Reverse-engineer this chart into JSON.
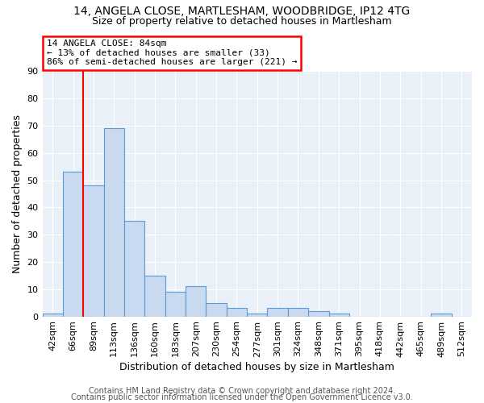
{
  "title1": "14, ANGELA CLOSE, MARTLESHAM, WOODBRIDGE, IP12 4TG",
  "title2": "Size of property relative to detached houses in Martlesham",
  "xlabel": "Distribution of detached houses by size in Martlesham",
  "ylabel": "Number of detached properties",
  "categories": [
    "42sqm",
    "66sqm",
    "89sqm",
    "113sqm",
    "136sqm",
    "160sqm",
    "183sqm",
    "207sqm",
    "230sqm",
    "254sqm",
    "277sqm",
    "301sqm",
    "324sqm",
    "348sqm",
    "371sqm",
    "395sqm",
    "418sqm",
    "442sqm",
    "465sqm",
    "489sqm",
    "512sqm"
  ],
  "values": [
    1,
    53,
    48,
    69,
    35,
    15,
    9,
    11,
    5,
    3,
    1,
    3,
    3,
    2,
    1,
    0,
    0,
    0,
    0,
    1,
    0
  ],
  "bar_color": "#c9d9f0",
  "bar_edge_color": "#5b9bd5",
  "bar_width": 1.0,
  "red_line_x": 1.5,
  "annotation_text": "14 ANGELA CLOSE: 84sqm\n← 13% of detached houses are smaller (33)\n86% of semi-detached houses are larger (221) →",
  "annotation_box_color": "white",
  "annotation_box_edge": "red",
  "ylim": [
    0,
    90
  ],
  "yticks": [
    0,
    10,
    20,
    30,
    40,
    50,
    60,
    70,
    80,
    90
  ],
  "background_color": "#eaf0f8",
  "footer1": "Contains HM Land Registry data © Crown copyright and database right 2024.",
  "footer2": "Contains public sector information licensed under the Open Government Licence v3.0.",
  "title1_fontsize": 10,
  "title2_fontsize": 9,
  "xlabel_fontsize": 9,
  "ylabel_fontsize": 9,
  "tick_fontsize": 8,
  "annotation_fontsize": 8,
  "footer_fontsize": 7
}
